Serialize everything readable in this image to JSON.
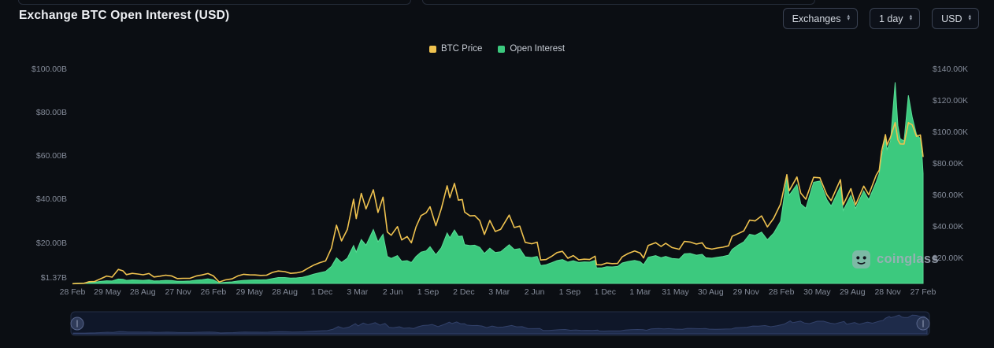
{
  "page": {
    "title": "Exchange BTC Open Interest (USD)"
  },
  "controls": {
    "exchanges_label": "Exchanges",
    "interval_label": "1 day",
    "currency_label": "USD"
  },
  "watermark": {
    "text": "coinglass"
  },
  "colors": {
    "background": "#0b0e13",
    "btc_price_line": "#efc24f",
    "open_interest_fill": "#3cc97e",
    "open_interest_edge": "#58dd95",
    "axis_text": "#848b99"
  },
  "chart_data": {
    "type": "area",
    "title": "Exchange BTC Open Interest (USD)",
    "legend_position": "top-center",
    "grid": false,
    "series_meta": [
      {
        "name": "BTC Price",
        "type": "line",
        "color": "#efc24f",
        "axis": "right",
        "unit": "USD thousands"
      },
      {
        "name": "Open Interest",
        "type": "area",
        "color": "#3cc97e",
        "edge_color": "#58dd95",
        "axis": "left",
        "unit": "USD billions"
      }
    ],
    "axes": {
      "oi_b": {
        "side": "left",
        "min": 1.37,
        "max": 100,
        "ticks": [
          {
            "v": 100,
            "label": "$100.00B"
          },
          {
            "v": 80,
            "label": "$80.00B"
          },
          {
            "v": 60,
            "label": "$60.00B"
          },
          {
            "v": 40,
            "label": "$40.00B"
          },
          {
            "v": 20,
            "label": "$20.00B"
          },
          {
            "v": 1.37,
            "label": "$1.37B"
          }
        ]
      },
      "price_k": {
        "side": "right",
        "min": 4,
        "max": 140,
        "ticks": [
          {
            "v": 140,
            "label": "$140.00K"
          },
          {
            "v": 120,
            "label": "$120.00K"
          },
          {
            "v": 100,
            "label": "$100.00K"
          },
          {
            "v": 80,
            "label": "$80.00K"
          },
          {
            "v": 60,
            "label": "$60.00K"
          },
          {
            "v": 40,
            "label": "$40.00K"
          },
          {
            "v": 20,
            "label": "$20.00K"
          }
        ]
      }
    },
    "x_ticks": [
      [
        "2019-02-28",
        "28 Feb"
      ],
      [
        "2019-05-29",
        "29 May"
      ],
      [
        "2019-08-28",
        "28 Aug"
      ],
      [
        "2019-11-27",
        "27 Nov"
      ],
      [
        "2020-02-26",
        "26 Feb"
      ],
      [
        "2020-05-29",
        "29 May"
      ],
      [
        "2020-08-28",
        "28 Aug"
      ],
      [
        "2020-12-01",
        "1 Dec"
      ],
      [
        "2021-03-03",
        "3 Mar"
      ],
      [
        "2021-06-02",
        "2 Jun"
      ],
      [
        "2021-09-01",
        "1 Sep"
      ],
      [
        "2021-12-02",
        "2 Dec"
      ],
      [
        "2022-03-03",
        "3 Mar"
      ],
      [
        "2022-06-02",
        "2 Jun"
      ],
      [
        "2022-09-01",
        "1 Sep"
      ],
      [
        "2022-12-01",
        "1 Dec"
      ],
      [
        "2023-03-01",
        "1 Mar"
      ],
      [
        "2023-05-31",
        "31 May"
      ],
      [
        "2023-08-30",
        "30 Aug"
      ],
      [
        "2023-11-29",
        "29 Nov"
      ],
      [
        "2024-02-28",
        "28 Feb"
      ],
      [
        "2024-05-30",
        "30 May"
      ],
      [
        "2024-08-29",
        "29 Aug"
      ],
      [
        "2024-11-28",
        "28 Nov"
      ],
      [
        "2025-02-27",
        "27 Feb"
      ]
    ],
    "columns": [
      "date",
      "btc_price_usd_thousands",
      "open_interest_usd_billions"
    ],
    "points": [
      [
        "2019-02-28",
        3.85,
        1.37
      ],
      [
        "2019-03-15",
        3.95,
        1.5
      ],
      [
        "2019-03-30",
        4.1,
        1.6
      ],
      [
        "2019-04-12",
        5.1,
        1.9
      ],
      [
        "2019-04-26",
        5.25,
        1.95
      ],
      [
        "2019-05-12",
        7.0,
        2.3
      ],
      [
        "2019-05-27",
        8.7,
        2.6
      ],
      [
        "2019-06-10",
        8.0,
        2.5
      ],
      [
        "2019-06-26",
        12.9,
        3.4
      ],
      [
        "2019-07-08",
        12.0,
        3.3
      ],
      [
        "2019-07-17",
        9.6,
        2.8
      ],
      [
        "2019-08-01",
        10.4,
        3.0
      ],
      [
        "2019-08-15",
        10.0,
        2.9
      ],
      [
        "2019-08-29",
        9.5,
        2.8
      ],
      [
        "2019-09-13",
        10.3,
        3.0
      ],
      [
        "2019-09-26",
        8.1,
        2.5
      ],
      [
        "2019-10-11",
        8.6,
        2.6
      ],
      [
        "2019-10-26",
        9.25,
        2.8
      ],
      [
        "2019-11-10",
        8.8,
        2.7
      ],
      [
        "2019-11-25",
        7.1,
        2.4
      ],
      [
        "2019-12-10",
        7.25,
        2.4
      ],
      [
        "2019-12-28",
        7.3,
        2.5
      ],
      [
        "2020-01-14",
        8.8,
        2.9
      ],
      [
        "2020-01-28",
        9.4,
        3.1
      ],
      [
        "2020-02-12",
        10.3,
        3.5
      ],
      [
        "2020-02-26",
        8.8,
        3.0
      ],
      [
        "2020-03-12",
        4.9,
        1.6
      ],
      [
        "2020-03-28",
        6.25,
        1.9
      ],
      [
        "2020-04-14",
        6.9,
        2.1
      ],
      [
        "2020-04-29",
        8.8,
        2.5
      ],
      [
        "2020-05-14",
        9.8,
        2.8
      ],
      [
        "2020-05-29",
        9.45,
        2.9
      ],
      [
        "2020-06-12",
        9.4,
        3.0
      ],
      [
        "2020-06-27",
        9.1,
        3.0
      ],
      [
        "2020-07-12",
        9.25,
        3.1
      ],
      [
        "2020-07-27",
        11.0,
        3.6
      ],
      [
        "2020-08-11",
        11.9,
        4.1
      ],
      [
        "2020-08-28",
        11.5,
        4.1
      ],
      [
        "2020-09-12",
        10.4,
        3.8
      ],
      [
        "2020-09-27",
        10.7,
        3.9
      ],
      [
        "2020-10-12",
        11.5,
        4.2
      ],
      [
        "2020-10-27",
        13.7,
        4.9
      ],
      [
        "2020-11-11",
        15.7,
        5.7
      ],
      [
        "2020-11-26",
        17.2,
        6.3
      ],
      [
        "2020-12-11",
        18.3,
        6.9
      ],
      [
        "2020-12-26",
        26.4,
        9.2
      ],
      [
        "2021-01-08",
        41.0,
        13.2
      ],
      [
        "2021-01-21",
        31.0,
        11.0
      ],
      [
        "2021-02-05",
        38.3,
        13.0
      ],
      [
        "2021-02-21",
        57.5,
        18.8
      ],
      [
        "2021-02-28",
        45.2,
        15.8
      ],
      [
        "2021-03-13",
        61.2,
        21.6
      ],
      [
        "2021-03-25",
        51.3,
        19.0
      ],
      [
        "2021-04-13",
        63.5,
        26.2
      ],
      [
        "2021-04-25",
        49.1,
        20.5
      ],
      [
        "2021-05-08",
        58.8,
        24.0
      ],
      [
        "2021-05-19",
        36.7,
        13.8
      ],
      [
        "2021-05-29",
        34.6,
        12.9
      ],
      [
        "2021-06-14",
        40.1,
        14.2
      ],
      [
        "2021-06-25",
        31.6,
        11.6
      ],
      [
        "2021-07-09",
        33.8,
        11.9
      ],
      [
        "2021-07-20",
        29.8,
        11.0
      ],
      [
        "2021-08-01",
        39.9,
        13.8
      ],
      [
        "2021-08-14",
        47.1,
        15.8
      ],
      [
        "2021-08-27",
        48.9,
        16.4
      ],
      [
        "2021-09-06",
        52.7,
        18.3
      ],
      [
        "2021-09-21",
        40.7,
        14.6
      ],
      [
        "2021-10-05",
        51.5,
        17.8
      ],
      [
        "2021-10-20",
        66.0,
        24.6
      ],
      [
        "2021-10-27",
        58.5,
        22.4
      ],
      [
        "2021-11-08",
        67.5,
        26.0
      ],
      [
        "2021-11-18",
        56.9,
        23.0
      ],
      [
        "2021-11-28",
        57.3,
        23.2
      ],
      [
        "2021-12-04",
        49.3,
        19.2
      ],
      [
        "2021-12-18",
        46.9,
        18.8
      ],
      [
        "2021-12-30",
        47.1,
        19.0
      ],
      [
        "2022-01-12",
        43.9,
        18.0
      ],
      [
        "2022-01-24",
        35.1,
        15.2
      ],
      [
        "2022-02-07",
        44.0,
        17.6
      ],
      [
        "2022-02-21",
        37.0,
        15.6
      ],
      [
        "2022-03-07",
        38.4,
        16.0
      ],
      [
        "2022-03-29",
        47.4,
        19.2
      ],
      [
        "2022-04-11",
        39.5,
        17.0
      ],
      [
        "2022-04-25",
        40.4,
        17.4
      ],
      [
        "2022-05-09",
        30.1,
        13.6
      ],
      [
        "2022-05-26",
        29.2,
        13.3
      ],
      [
        "2022-06-09",
        30.2,
        13.8
      ],
      [
        "2022-06-18",
        18.9,
        9.6
      ],
      [
        "2022-07-02",
        19.2,
        10.0
      ],
      [
        "2022-07-16",
        21.2,
        10.9
      ],
      [
        "2022-07-30",
        23.6,
        11.9
      ],
      [
        "2022-08-13",
        24.4,
        12.4
      ],
      [
        "2022-08-27",
        20.0,
        11.2
      ],
      [
        "2022-09-10",
        21.7,
        11.8
      ],
      [
        "2022-09-24",
        19.0,
        11.0
      ],
      [
        "2022-10-08",
        19.4,
        11.3
      ],
      [
        "2022-10-22",
        19.2,
        11.2
      ],
      [
        "2022-11-05",
        21.3,
        12.0
      ],
      [
        "2022-11-09",
        15.9,
        8.6
      ],
      [
        "2022-11-21",
        15.8,
        8.5
      ],
      [
        "2022-12-05",
        17.0,
        9.1
      ],
      [
        "2022-12-19",
        16.6,
        9.0
      ],
      [
        "2023-01-02",
        16.7,
        9.2
      ],
      [
        "2023-01-14",
        20.9,
        10.8
      ],
      [
        "2023-01-29",
        23.0,
        11.5
      ],
      [
        "2023-02-15",
        24.6,
        12.0
      ],
      [
        "2023-03-01",
        23.3,
        11.4
      ],
      [
        "2023-03-10",
        20.2,
        10.0
      ],
      [
        "2023-03-22",
        28.1,
        13.4
      ],
      [
        "2023-04-10",
        29.9,
        14.2
      ],
      [
        "2023-04-24",
        27.5,
        13.2
      ],
      [
        "2023-05-06",
        29.5,
        13.8
      ],
      [
        "2023-05-22",
        26.8,
        12.9
      ],
      [
        "2023-06-10",
        25.7,
        12.6
      ],
      [
        "2023-06-23",
        30.7,
        15.0
      ],
      [
        "2023-07-08",
        30.3,
        15.2
      ],
      [
        "2023-07-24",
        29.0,
        14.4
      ],
      [
        "2023-08-08",
        29.8,
        14.8
      ],
      [
        "2023-08-17",
        26.6,
        13.2
      ],
      [
        "2023-09-02",
        25.8,
        13.0
      ],
      [
        "2023-09-16",
        26.5,
        13.4
      ],
      [
        "2023-09-30",
        27.0,
        13.8
      ],
      [
        "2023-10-15",
        27.9,
        14.4
      ],
      [
        "2023-10-24",
        33.9,
        17.0
      ],
      [
        "2023-11-08",
        35.6,
        19.0
      ],
      [
        "2023-11-23",
        37.3,
        20.5
      ],
      [
        "2023-12-08",
        44.2,
        24.0
      ],
      [
        "2023-12-22",
        43.7,
        23.5
      ],
      [
        "2024-01-08",
        46.9,
        25.0
      ],
      [
        "2024-01-23",
        39.9,
        21.5
      ],
      [
        "2024-02-08",
        45.3,
        24.5
      ],
      [
        "2024-02-26",
        54.5,
        30.0
      ],
      [
        "2024-03-13",
        73.1,
        50.0
      ],
      [
        "2024-03-19",
        62.8,
        42.0
      ],
      [
        "2024-04-08",
        71.6,
        47.0
      ],
      [
        "2024-04-18",
        61.3,
        38.0
      ],
      [
        "2024-05-01",
        57.5,
        36.0
      ],
      [
        "2024-05-21",
        71.4,
        48.0
      ],
      [
        "2024-06-06",
        71.1,
        48.5
      ],
      [
        "2024-06-24",
        60.3,
        40.0
      ],
      [
        "2024-07-05",
        56.6,
        37.0
      ],
      [
        "2024-07-29",
        69.9,
        46.0
      ],
      [
        "2024-08-05",
        53.9,
        35.0
      ],
      [
        "2024-08-25",
        64.2,
        42.0
      ],
      [
        "2024-09-06",
        53.9,
        36.0
      ],
      [
        "2024-09-27",
        65.8,
        44.0
      ],
      [
        "2024-10-10",
        60.3,
        40.0
      ],
      [
        "2024-10-29",
        72.7,
        48.0
      ],
      [
        "2024-11-06",
        75.9,
        52.0
      ],
      [
        "2024-11-12",
        88.0,
        60.0
      ],
      [
        "2024-11-22",
        98.5,
        68.0
      ],
      [
        "2024-11-26",
        91.9,
        63.0
      ],
      [
        "2024-12-05",
        96.9,
        67.0
      ],
      [
        "2024-12-17",
        106.1,
        94.0
      ],
      [
        "2024-12-24",
        95.2,
        74.0
      ],
      [
        "2024-12-30",
        92.6,
        68.0
      ],
      [
        "2025-01-09",
        92.5,
        67.0
      ],
      [
        "2025-01-20",
        106.1,
        88.0
      ],
      [
        "2025-01-30",
        104.7,
        78.0
      ],
      [
        "2025-02-10",
        97.4,
        70.0
      ],
      [
        "2025-02-20",
        98.3,
        68.0
      ],
      [
        "2025-02-25",
        88.7,
        58.0
      ],
      [
        "2025-02-27",
        84.3,
        52.0
      ]
    ]
  }
}
